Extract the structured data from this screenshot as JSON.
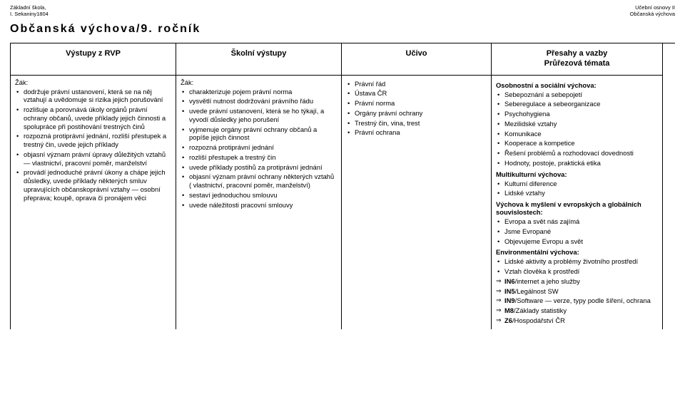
{
  "header": {
    "left_line1": "Základní škola,",
    "left_line2": "I. Sekaniny1804",
    "right_line1": "Učební osnovy II",
    "right_line2": "Občanská výchova"
  },
  "title": "Občanská výchova/9. ročník",
  "columns": {
    "c1": "Výstupy z RVP",
    "c2": "Školní výstupy",
    "c3": "Učivo",
    "c4a": "Přesahy a vazby",
    "c4b": "Průřezová témata"
  },
  "col1": {
    "lead": "Žák:",
    "items": [
      "dodržuje právní ustanovení, která se na něj vztahují a uvědomuje si rizika jejich porušování",
      "rozlišuje a porovnává úkoly orgánů právní ochrany občanů, uvede příklady jejich činnosti a spolupráce při postihování trestných činů",
      "rozpozná protiprávní jednání, rozliší přestupek a trestný čin, uvede jejich příklady",
      "objasní význam právní úpravy důležitých vztahů — vlastnictví, pracovní poměr, manželství",
      "provádí jednoduché právní úkony a chápe jejich důsledky, uvede příklady některých smluv upravujících občanskoprávní vztahy — osobní přeprava; koupě, oprava či pronájem věci"
    ]
  },
  "col2": {
    "lead": "Žák:",
    "items": [
      "charakterizuje pojem právní norma",
      "vysvětlí nutnost dodržování právního řádu",
      "uvede právní ustanovení, která se ho týkají, a vyvodí důsledky jeho porušení",
      "vyjmenuje orgány právní ochrany občanů a popíše jejich činnost",
      "rozpozná protiprávní jednání",
      "rozliší přestupek a trestný čin",
      "uvede příklady postihů za protiprávní jednání",
      "objasní význam právní ochrany některých vztahů ( vlastnictví, pracovní poměr, manželství)",
      "sestaví jednoduchou smlouvu",
      "uvede náležitosti pracovní smlouvy"
    ]
  },
  "col3": {
    "items": [
      "Právní řád",
      "Ústava ČR",
      "Právní norma",
      "Orgány právní ochrany",
      "Trestný čin, vina, trest",
      "Právní ochrana"
    ]
  },
  "col4": {
    "osv_head": "Osobnostní a sociální výchova:",
    "osv": [
      "Sebepoznání a sebepojetí",
      "Seberegulace a sebeorganizace",
      "Psychohygiena",
      "Mezilidské vztahy",
      "Komunikace",
      "Kooperace a kompetice",
      "Řešení problémů a rozhodovací dovednosti",
      "Hodnoty, postoje, praktická etika"
    ],
    "mkv_head": "Multikulturní výchova:",
    "mkv": [
      "Kulturní diference",
      "Lidské vztahy"
    ],
    "ves_head": "Výchova k myšlení v evropských a globálních souvislostech:",
    "ves": [
      "Evropa a svět nás zajímá",
      "Jsme Evropané",
      "Objevujeme Evropu a svět"
    ],
    "env_head": "Environmentální výchova:",
    "env": [
      "Lidské aktivity a problémy životního prostředí",
      "Vztah člověka k prostředí"
    ],
    "arrows": [
      {
        "code": "IN6",
        "rest": "/internet a jeho služby"
      },
      {
        "code": "IN5",
        "rest": "/Legálnost SW"
      },
      {
        "code": "IN9",
        "rest": "/Software — verze, typy podle šíření, ochrana"
      },
      {
        "code": "M8",
        "rest": "/Základy statistiky"
      },
      {
        "code": "Z6",
        "rest": "/Hospodářství ČR"
      }
    ]
  }
}
